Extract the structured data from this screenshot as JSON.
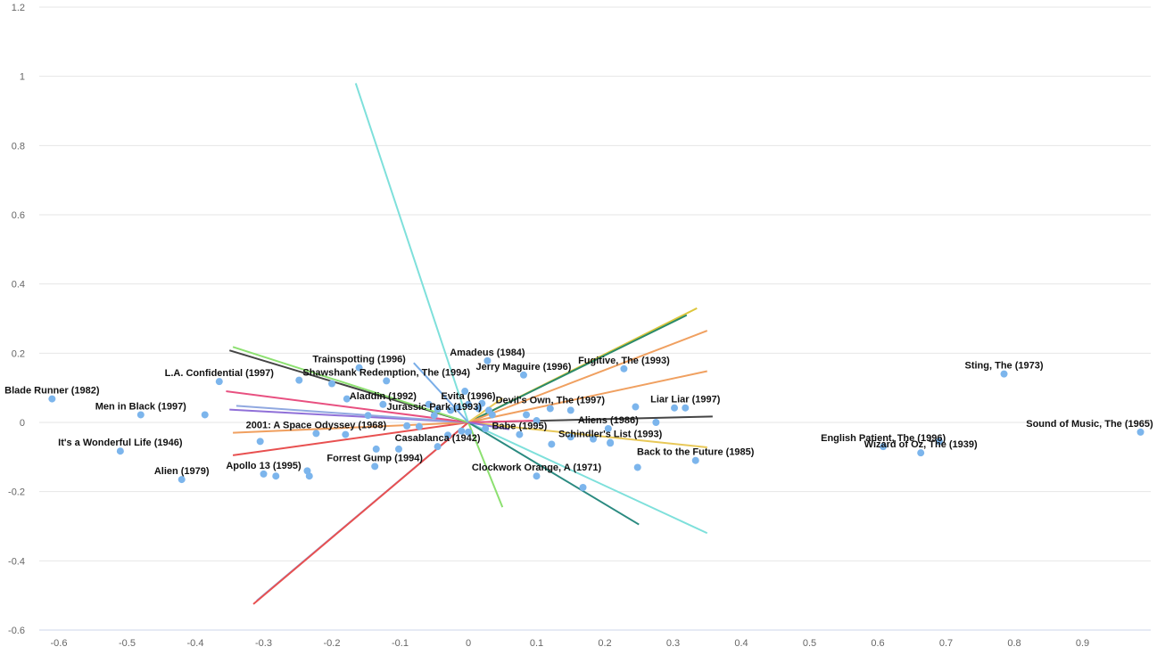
{
  "chart_data": {
    "type": "scatter",
    "title": "",
    "xlabel": "",
    "ylabel": "",
    "xlim": [
      -0.63,
      1.0
    ],
    "ylim": [
      -0.6,
      1.2
    ],
    "x_ticks": [
      -0.6,
      -0.5,
      -0.4,
      -0.3,
      -0.2,
      -0.1,
      0,
      0.1,
      0.2,
      0.3,
      0.4,
      0.5,
      0.6,
      0.7,
      0.8,
      0.9
    ],
    "y_ticks": [
      -0.6,
      -0.4,
      -0.2,
      0,
      0.2,
      0.4,
      0.6,
      0.8,
      1,
      1.2
    ],
    "grid": true,
    "point_color": "#7cb5ec",
    "labeled_points": [
      {
        "name": "Blade Runner (1982)",
        "x": -0.61,
        "y": 0.068
      },
      {
        "name": "Men in Black (1997)",
        "x": -0.48,
        "y": 0.022
      },
      {
        "name": "It's a Wonderful Life (1946)",
        "x": -0.51,
        "y": -0.083
      },
      {
        "name": "Alien (1979)",
        "x": -0.42,
        "y": -0.165
      },
      {
        "name": "L.A. Confidential (1997)",
        "x": -0.365,
        "y": 0.118
      },
      {
        "name": "Trainspotting (1996)",
        "x": -0.16,
        "y": 0.158
      },
      {
        "name": "Shawshank Redemption, The (1994)",
        "x": -0.12,
        "y": 0.12
      },
      {
        "name": "Aladdin (1992)",
        "x": -0.125,
        "y": 0.052
      },
      {
        "name": "2001: A Space Odyssey (1968)",
        "x": -0.223,
        "y": -0.032
      },
      {
        "name": "Apollo 13 (1995)",
        "x": -0.3,
        "y": -0.149
      },
      {
        "name": "Forrest Gump (1994)",
        "x": -0.137,
        "y": -0.127
      },
      {
        "name": "Casablanca (1942)",
        "x": -0.045,
        "y": -0.07
      },
      {
        "name": "Jurassic Park (1993)",
        "x": -0.05,
        "y": 0.02
      },
      {
        "name": "Evita (1996)",
        "x": 0.0,
        "y": 0.052
      },
      {
        "name": "Amadeus (1984)",
        "x": 0.028,
        "y": 0.178
      },
      {
        "name": "Jerry Maguire (1996)",
        "x": 0.081,
        "y": 0.137
      },
      {
        "name": "Devil's Own, The (1997)",
        "x": 0.12,
        "y": 0.04
      },
      {
        "name": "Fugitive, The (1993)",
        "x": 0.228,
        "y": 0.155
      },
      {
        "name": "Liar Liar (1997)",
        "x": 0.318,
        "y": 0.042
      },
      {
        "name": "Aliens (1986)",
        "x": 0.205,
        "y": -0.018
      },
      {
        "name": "Babe (1995)",
        "x": 0.075,
        "y": -0.035
      },
      {
        "name": "Schindler's List (1993)",
        "x": 0.208,
        "y": -0.058
      },
      {
        "name": "Back to the Future (1985)",
        "x": 0.333,
        "y": -0.11
      },
      {
        "name": "Clockwork Orange, A (1971)",
        "x": 0.1,
        "y": -0.155
      },
      {
        "name": "Sting, The (1973)",
        "x": 0.785,
        "y": 0.14
      },
      {
        "name": "Sound of Music, The (1965)",
        "x": 0.985,
        "y": -0.028
      },
      {
        "name": "English Patient, The (1996)",
        "x": 0.608,
        "y": -0.07
      },
      {
        "name": "Wizard of Oz, The (1939)",
        "x": 0.663,
        "y": -0.088
      }
    ],
    "other_points": [
      {
        "x": -0.386,
        "y": 0.022
      },
      {
        "x": -0.305,
        "y": -0.055
      },
      {
        "x": -0.282,
        "y": -0.155
      },
      {
        "x": -0.248,
        "y": 0.122
      },
      {
        "x": -0.236,
        "y": -0.14
      },
      {
        "x": -0.233,
        "y": -0.155
      },
      {
        "x": -0.2,
        "y": 0.112
      },
      {
        "x": -0.18,
        "y": -0.035
      },
      {
        "x": -0.178,
        "y": 0.068
      },
      {
        "x": -0.147,
        "y": 0.02
      },
      {
        "x": -0.135,
        "y": -0.077
      },
      {
        "x": -0.102,
        "y": -0.077
      },
      {
        "x": -0.09,
        "y": -0.01
      },
      {
        "x": -0.072,
        "y": -0.012
      },
      {
        "x": -0.058,
        "y": 0.052
      },
      {
        "x": -0.045,
        "y": 0.038
      },
      {
        "x": -0.03,
        "y": -0.037
      },
      {
        "x": -0.026,
        "y": 0.035
      },
      {
        "x": -0.015,
        "y": 0.042
      },
      {
        "x": -0.01,
        "y": -0.025
      },
      {
        "x": -0.005,
        "y": 0.09
      },
      {
        "x": 0.0,
        "y": -0.028
      },
      {
        "x": 0.015,
        "y": 0.04
      },
      {
        "x": 0.02,
        "y": 0.055
      },
      {
        "x": 0.025,
        "y": -0.018
      },
      {
        "x": 0.03,
        "y": 0.035
      },
      {
        "x": 0.035,
        "y": 0.022
      },
      {
        "x": 0.085,
        "y": 0.022
      },
      {
        "x": 0.1,
        "y": 0.005
      },
      {
        "x": 0.122,
        "y": -0.063
      },
      {
        "x": 0.15,
        "y": 0.035
      },
      {
        "x": 0.15,
        "y": -0.042
      },
      {
        "x": 0.183,
        "y": -0.048
      },
      {
        "x": 0.208,
        "y": -0.06
      },
      {
        "x": 0.245,
        "y": 0.045
      },
      {
        "x": 0.248,
        "y": -0.13
      },
      {
        "x": 0.275,
        "y": 0.0
      },
      {
        "x": 0.302,
        "y": 0.042
      },
      {
        "x": 0.168,
        "y": -0.188
      },
      {
        "x": 0.69,
        "y": -0.055
      }
    ],
    "vectors": [
      {
        "color": "#7ee0db",
        "x1": -0.165,
        "y1": 0.98
      },
      {
        "color": "#7ee0db",
        "x1": 0.35,
        "y1": -0.32
      },
      {
        "color": "#ddc63a",
        "x1": 0.335,
        "y1": 0.33
      },
      {
        "color": "#2a8a6a",
        "x1": 0.32,
        "y1": 0.31
      },
      {
        "color": "#f0a060",
        "x1": 0.35,
        "y1": 0.265
      },
      {
        "color": "#f0a060",
        "x1": 0.35,
        "y1": 0.148
      },
      {
        "color": "#444444",
        "x1": 0.358,
        "y1": 0.017
      },
      {
        "color": "#e8c858",
        "x1": 0.35,
        "y1": -0.072
      },
      {
        "color": "#2a8a80",
        "x1": 0.25,
        "y1": -0.295
      },
      {
        "color": "#8ce070",
        "x1": 0.05,
        "y1": -0.245
      },
      {
        "color": "#90a8e0",
        "x1": -0.31,
        "y1": -0.515
      },
      {
        "color": "#e85050",
        "x1": -0.315,
        "y1": -0.525
      },
      {
        "color": "#e85050",
        "x1": -0.345,
        "y1": -0.095
      },
      {
        "color": "#f0a060",
        "x1": -0.345,
        "y1": -0.03
      },
      {
        "color": "#9070d8",
        "x1": -0.35,
        "y1": 0.037
      },
      {
        "color": "#90a8e0",
        "x1": -0.34,
        "y1": 0.048
      },
      {
        "color": "#e85080",
        "x1": -0.355,
        "y1": 0.09
      },
      {
        "color": "#444444",
        "x1": -0.35,
        "y1": 0.208
      },
      {
        "color": "#8ce070",
        "x1": -0.345,
        "y1": 0.218
      },
      {
        "color": "#7aaee8",
        "x1": -0.08,
        "y1": 0.172
      },
      {
        "color": "#e8c858",
        "x1": 0.05,
        "y1": 0.07
      },
      {
        "color": "#e85080",
        "x1": 0.1,
        "y1": 0.005
      },
      {
        "color": "#9070d8",
        "x1": 0.06,
        "y1": -0.02
      }
    ]
  }
}
